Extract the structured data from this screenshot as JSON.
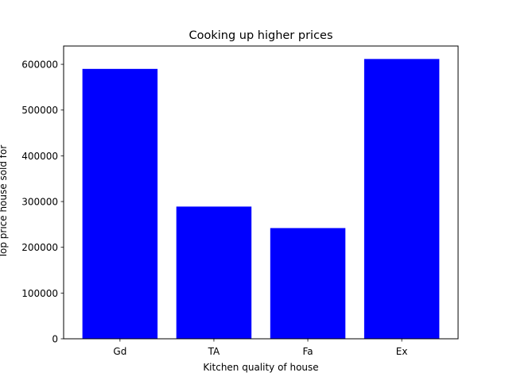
{
  "chart_data": {
    "type": "bar",
    "title": "Cooking up higher prices",
    "xlabel": "Kitchen quality of house",
    "ylabel": "Top price house sold for",
    "categories": [
      "Gd",
      "TA",
      "Fa",
      "Ex"
    ],
    "values": [
      590000,
      289000,
      242000,
      611657
    ],
    "ylim": [
      0,
      640000
    ],
    "yticks": [
      0,
      100000,
      200000,
      300000,
      400000,
      500000,
      600000
    ],
    "bar_color": "#0000ff",
    "grid": false,
    "legend": "none"
  }
}
